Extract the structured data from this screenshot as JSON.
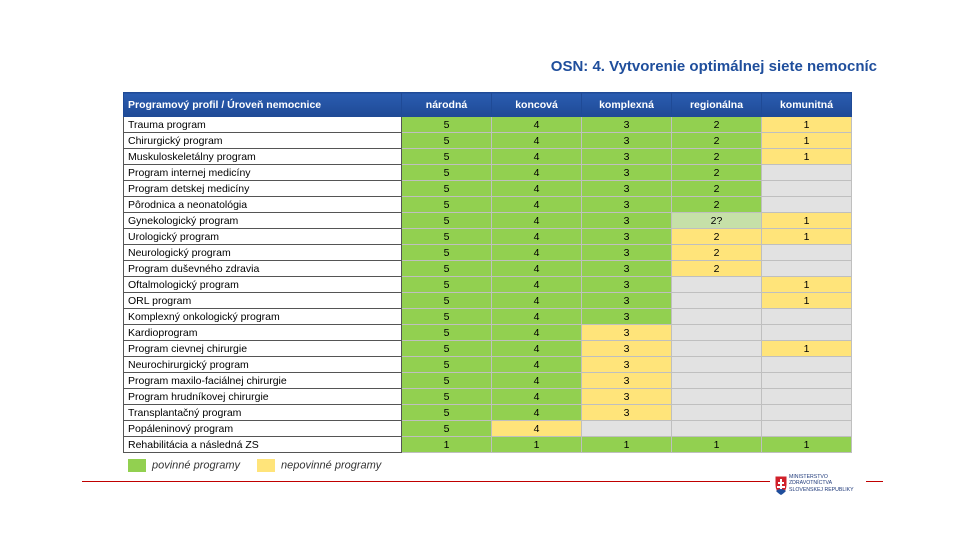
{
  "header": {
    "title": "OSN: 4. Vytvorenie optimálnej siete nemocníc"
  },
  "table": {
    "columns": [
      "Programový profil  /  Úroveň nemocnice",
      "národná",
      "koncová",
      "komplexná",
      "regionálna",
      "komunitná"
    ],
    "rows": [
      {
        "label": "Trauma program",
        "cells": [
          {
            "text": "5",
            "color": "#92d050"
          },
          {
            "text": "4",
            "color": "#92d050"
          },
          {
            "text": "3",
            "color": "#92d050"
          },
          {
            "text": "2",
            "color": "#92d050"
          },
          {
            "text": "1",
            "color": "#ffe47a"
          }
        ]
      },
      {
        "label": "Chirurgický program",
        "cells": [
          {
            "text": "5",
            "color": "#92d050"
          },
          {
            "text": "4",
            "color": "#92d050"
          },
          {
            "text": "3",
            "color": "#92d050"
          },
          {
            "text": "2",
            "color": "#92d050"
          },
          {
            "text": "1",
            "color": "#ffe47a"
          }
        ]
      },
      {
        "label": "Muskuloskeletálny program",
        "cells": [
          {
            "text": "5",
            "color": "#92d050"
          },
          {
            "text": "4",
            "color": "#92d050"
          },
          {
            "text": "3",
            "color": "#92d050"
          },
          {
            "text": "2",
            "color": "#92d050"
          },
          {
            "text": "1",
            "color": "#ffe47a"
          }
        ]
      },
      {
        "label": "Program internej medicíny",
        "cells": [
          {
            "text": "5",
            "color": "#92d050"
          },
          {
            "text": "4",
            "color": "#92d050"
          },
          {
            "text": "3",
            "color": "#92d050"
          },
          {
            "text": "2",
            "color": "#92d050"
          },
          {
            "color": "#e2e2e2"
          }
        ]
      },
      {
        "label": "Program detskej medicíny",
        "cells": [
          {
            "text": "5",
            "color": "#92d050"
          },
          {
            "text": "4",
            "color": "#92d050"
          },
          {
            "text": "3",
            "color": "#92d050"
          },
          {
            "text": "2",
            "color": "#92d050"
          },
          {
            "color": "#e2e2e2"
          }
        ]
      },
      {
        "label": "Pôrodnica a neonatológia",
        "cells": [
          {
            "text": "5",
            "color": "#92d050"
          },
          {
            "text": "4",
            "color": "#92d050"
          },
          {
            "text": "3",
            "color": "#92d050"
          },
          {
            "text": "2",
            "color": "#92d050"
          },
          {
            "color": "#e2e2e2"
          }
        ]
      },
      {
        "label": "Gynekologický program",
        "cells": [
          {
            "text": "5",
            "color": "#92d050"
          },
          {
            "text": "4",
            "color": "#92d050"
          },
          {
            "text": "3",
            "color": "#92d050"
          },
          {
            "text": "2?",
            "color": "#c6e0a8"
          },
          {
            "text": "1",
            "color": "#ffe47a"
          }
        ]
      },
      {
        "label": "Urologický program",
        "cells": [
          {
            "text": "5",
            "color": "#92d050"
          },
          {
            "text": "4",
            "color": "#92d050"
          },
          {
            "text": "3",
            "color": "#92d050"
          },
          {
            "text": "2",
            "color": "#ffe47a"
          },
          {
            "text": "1",
            "color": "#ffe47a"
          }
        ]
      },
      {
        "label": "Neurologický program",
        "cells": [
          {
            "text": "5",
            "color": "#92d050"
          },
          {
            "text": "4",
            "color": "#92d050"
          },
          {
            "text": "3",
            "color": "#92d050"
          },
          {
            "text": "2",
            "color": "#ffe47a"
          },
          {
            "color": "#e2e2e2"
          }
        ]
      },
      {
        "label": "Program duševného zdravia",
        "cells": [
          {
            "text": "5",
            "color": "#92d050"
          },
          {
            "text": "4",
            "color": "#92d050"
          },
          {
            "text": "3",
            "color": "#92d050"
          },
          {
            "text": "2",
            "color": "#ffe47a"
          },
          {
            "color": "#e2e2e2"
          }
        ]
      },
      {
        "label": "Oftalmologický program",
        "cells": [
          {
            "text": "5",
            "color": "#92d050"
          },
          {
            "text": "4",
            "color": "#92d050"
          },
          {
            "text": "3",
            "color": "#92d050"
          },
          {
            "color": "#e2e2e2"
          },
          {
            "text": "1",
            "color": "#ffe47a"
          }
        ]
      },
      {
        "label": "ORL program",
        "cells": [
          {
            "text": "5",
            "color": "#92d050"
          },
          {
            "text": "4",
            "color": "#92d050"
          },
          {
            "text": "3",
            "color": "#92d050"
          },
          {
            "color": "#e2e2e2"
          },
          {
            "text": "1",
            "color": "#ffe47a"
          }
        ]
      },
      {
        "label": "Komplexný onkologický program",
        "cells": [
          {
            "text": "5",
            "color": "#92d050"
          },
          {
            "text": "4",
            "color": "#92d050"
          },
          {
            "text": "3",
            "color": "#92d050"
          },
          {
            "color": "#e2e2e2"
          },
          {
            "color": "#e2e2e2"
          }
        ]
      },
      {
        "label": "Kardioprogram",
        "cells": [
          {
            "text": "5",
            "color": "#92d050"
          },
          {
            "text": "4",
            "color": "#92d050"
          },
          {
            "text": "3",
            "color": "#ffe47a"
          },
          {
            "color": "#e2e2e2"
          },
          {
            "color": "#e2e2e2"
          }
        ]
      },
      {
        "label": "Program cievnej chirurgie",
        "cells": [
          {
            "text": "5",
            "color": "#92d050"
          },
          {
            "text": "4",
            "color": "#92d050"
          },
          {
            "text": "3",
            "color": "#ffe47a"
          },
          {
            "color": "#e2e2e2"
          },
          {
            "text": "1",
            "color": "#ffe47a"
          }
        ]
      },
      {
        "label": "Neurochirurgický program",
        "cells": [
          {
            "text": "5",
            "color": "#92d050"
          },
          {
            "text": "4",
            "color": "#92d050"
          },
          {
            "text": "3",
            "color": "#ffe47a"
          },
          {
            "color": "#e2e2e2"
          },
          {
            "color": "#e2e2e2"
          }
        ]
      },
      {
        "label": "Program maxilo-faciálnej chirurgie",
        "cells": [
          {
            "text": "5",
            "color": "#92d050"
          },
          {
            "text": "4",
            "color": "#92d050"
          },
          {
            "text": "3",
            "color": "#ffe47a"
          },
          {
            "color": "#e2e2e2"
          },
          {
            "color": "#e2e2e2"
          }
        ]
      },
      {
        "label": "Program hrudníkovej chirurgie",
        "cells": [
          {
            "text": "5",
            "color": "#92d050"
          },
          {
            "text": "4",
            "color": "#92d050"
          },
          {
            "text": "3",
            "color": "#ffe47a"
          },
          {
            "color": "#e2e2e2"
          },
          {
            "color": "#e2e2e2"
          }
        ]
      },
      {
        "label": "Transplantačný program",
        "cells": [
          {
            "text": "5",
            "color": "#92d050"
          },
          {
            "text": "4",
            "color": "#92d050"
          },
          {
            "text": "3",
            "color": "#ffe47a"
          },
          {
            "color": "#e2e2e2"
          },
          {
            "color": "#e2e2e2"
          }
        ]
      },
      {
        "label": "Popáleninový program",
        "cells": [
          {
            "text": "5",
            "color": "#92d050"
          },
          {
            "text": "4",
            "color": "#ffe47a"
          },
          {
            "color": "#e2e2e2"
          },
          {
            "color": "#e2e2e2"
          },
          {
            "color": "#e2e2e2"
          }
        ]
      },
      {
        "label": "Rehabilitácia a následná ZS",
        "cells": [
          {
            "text": "1",
            "color": "#92d050"
          },
          {
            "text": "1",
            "color": "#92d050"
          },
          {
            "text": "1",
            "color": "#92d050"
          },
          {
            "text": "1",
            "color": "#92d050"
          },
          {
            "text": "1",
            "color": "#92d050"
          }
        ]
      }
    ]
  },
  "legend": [
    {
      "label": "povinné programy",
      "color": "#92d050"
    },
    {
      "label": "nepovinné programy",
      "color": "#ffe47a"
    }
  ],
  "logo": {
    "lines": [
      "MINISTERSTVO",
      "ZDRAVOTNÍCTVA",
      "SLOVENSKEJ REPUBLIKY"
    ]
  }
}
